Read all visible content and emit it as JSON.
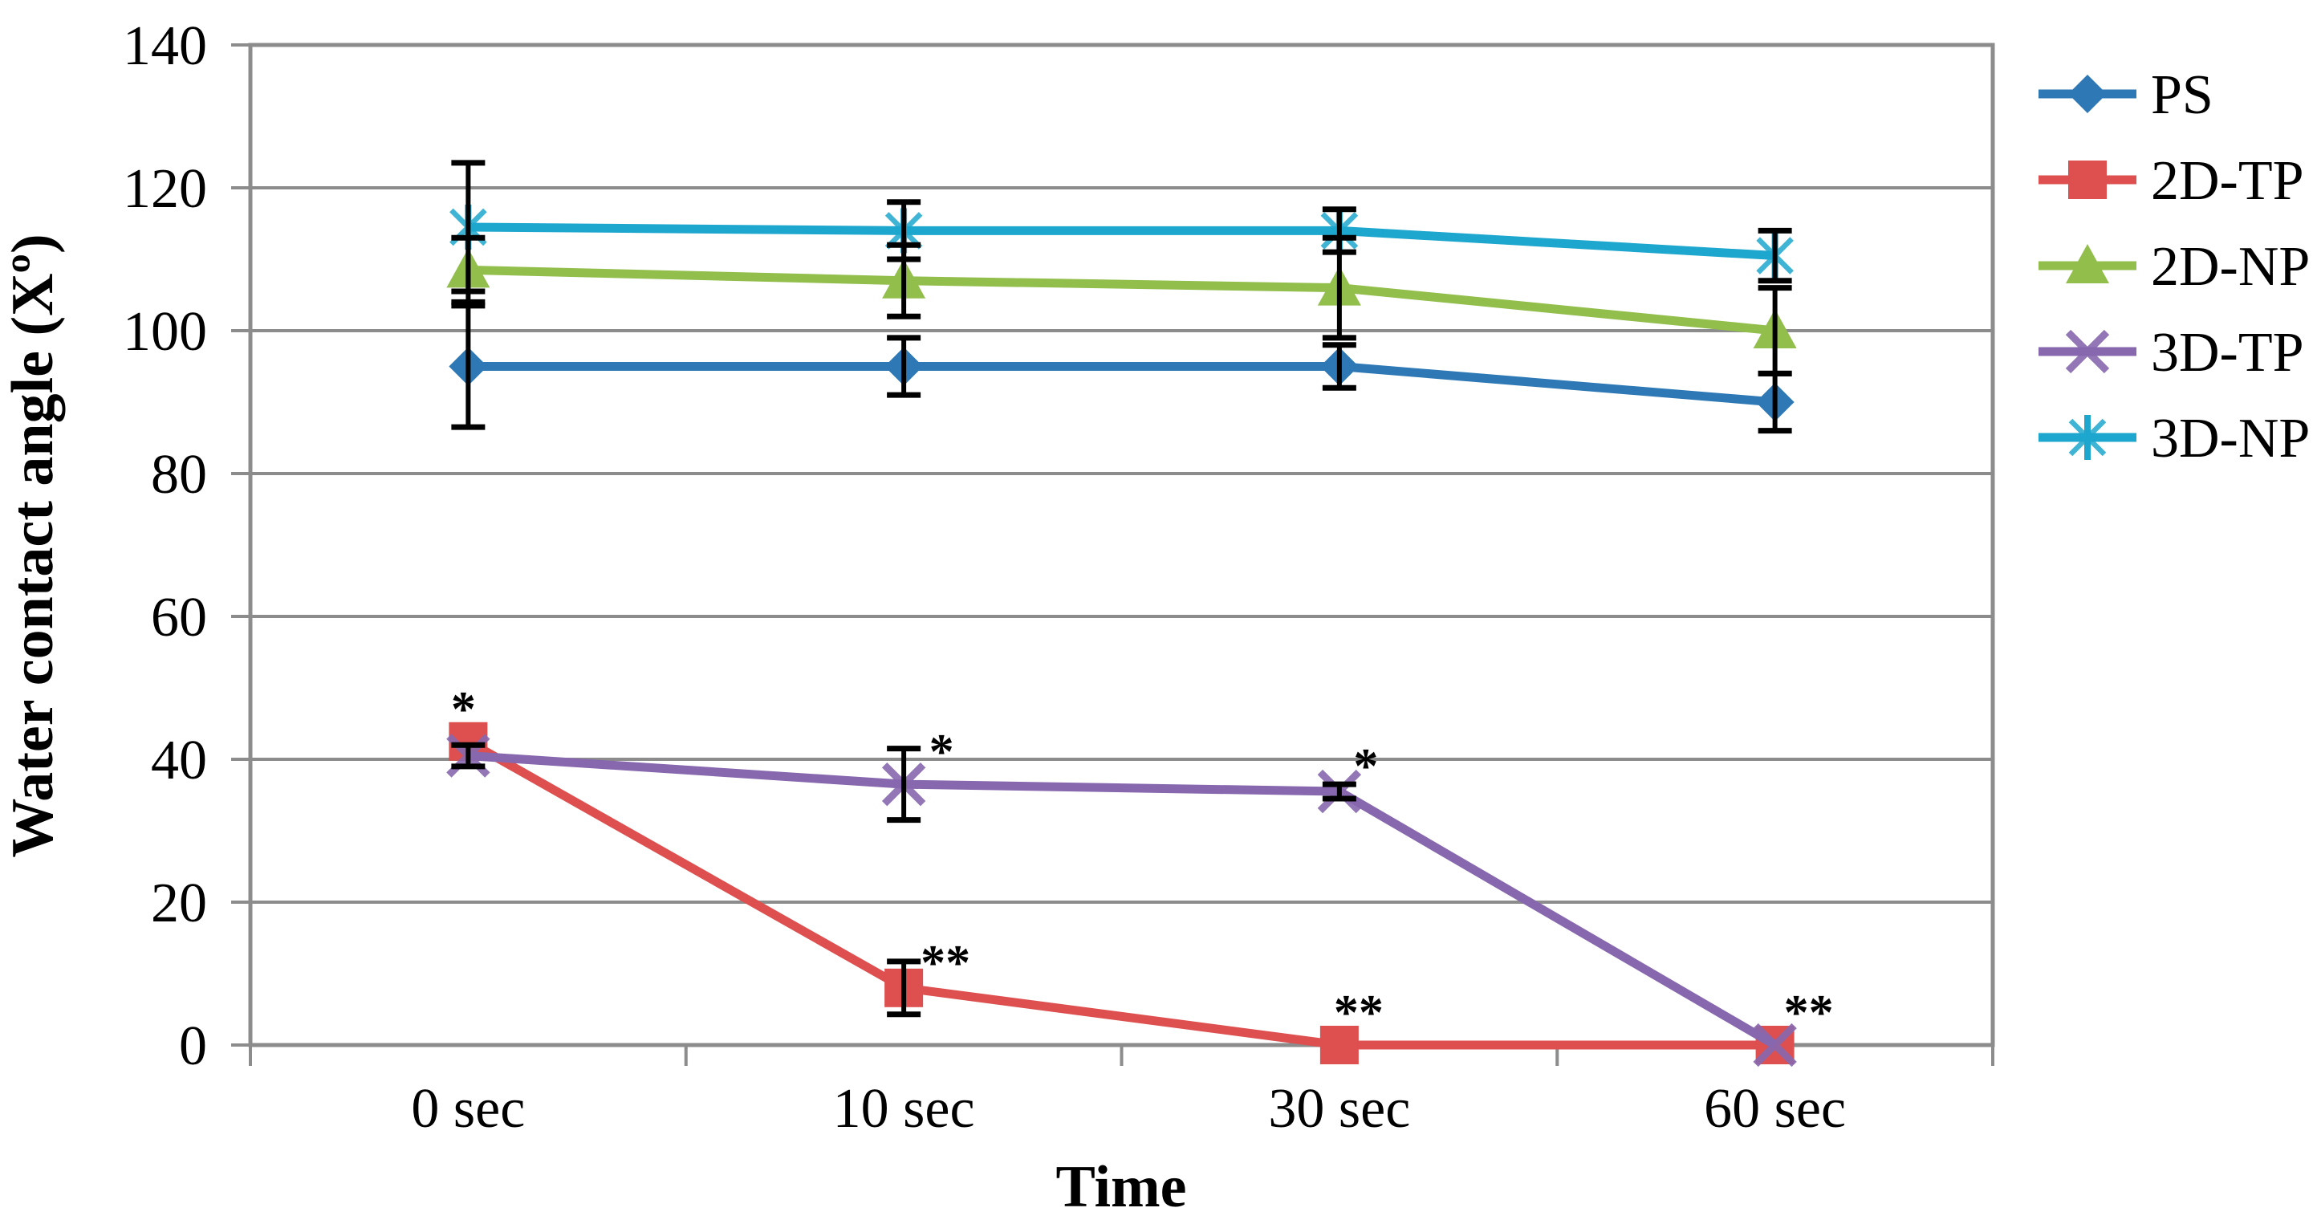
{
  "figure": {
    "background": "#ffffff",
    "axis_color": "#8C8C8C",
    "errorbar_color": "#000000",
    "text_color": "#000000"
  },
  "chart_data": {
    "type": "line",
    "title": "",
    "xlabel": "Time",
    "ylabel": "Water contact angle (Xº)",
    "categories": [
      "0 sec",
      "10 sec",
      "30 sec",
      "60 sec"
    ],
    "ylim": [
      0,
      140
    ],
    "ytick_step": 20,
    "y_ticks": [
      0,
      20,
      40,
      60,
      80,
      100,
      120,
      140
    ],
    "grid": "horizontal",
    "legend_position": "right",
    "series": [
      {
        "name": "PS",
        "color": "#2E79B5",
        "marker": "diamond",
        "values": [
          95,
          95,
          95,
          90
        ],
        "errors": [
          8.5,
          4,
          3,
          4
        ]
      },
      {
        "name": "2D-TP",
        "color": "#DE4F4F",
        "marker": "square",
        "values": [
          42.5,
          8,
          0,
          0
        ],
        "errors": [
          0,
          3.7,
          0,
          0
        ]
      },
      {
        "name": "2D-NP",
        "color": "#92BE4C",
        "marker": "triangle",
        "values": [
          108.5,
          107,
          106,
          100
        ],
        "errors": [
          4.5,
          5,
          7,
          6
        ]
      },
      {
        "name": "3D-TP",
        "color": "#8767AE",
        "marker": "x",
        "values": [
          40.5,
          36.5,
          35.5,
          0
        ],
        "errors": [
          1.5,
          5,
          1,
          0
        ]
      },
      {
        "name": "3D-NP",
        "color": "#1EA7CE",
        "marker": "asterisk",
        "values": [
          114.5,
          114,
          114,
          110.5
        ],
        "errors": [
          9,
          4,
          3,
          3.5
        ]
      }
    ],
    "annotations": [
      {
        "text": "*",
        "category_index": 0,
        "y": 48,
        "dx": -6
      },
      {
        "text": "*",
        "category_index": 1,
        "y": 42,
        "dx": 47
      },
      {
        "text": "**",
        "category_index": 1,
        "y": 12.5,
        "dx": 52
      },
      {
        "text": "*",
        "category_index": 2,
        "y": 40,
        "dx": 33
      },
      {
        "text": "**",
        "category_index": 2,
        "y": 5.5,
        "dx": 24
      },
      {
        "text": "**",
        "category_index": 3,
        "y": 5.5,
        "dx": 42
      }
    ]
  }
}
